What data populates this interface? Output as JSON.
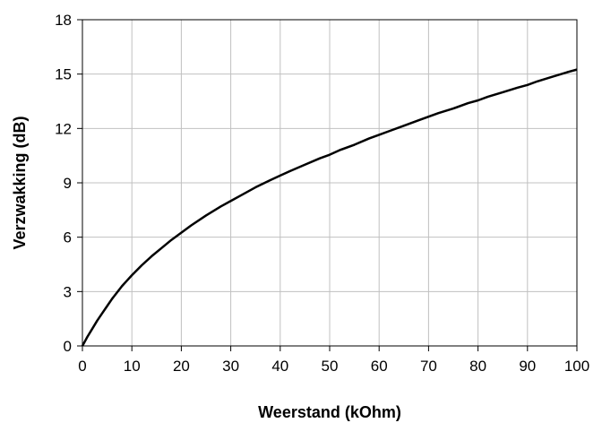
{
  "chart_data": {
    "type": "line",
    "title": "",
    "xlabel": "Weerstand (kOhm)",
    "ylabel": "Verzwakking (dB)",
    "xlim": [
      0,
      100
    ],
    "ylim": [
      0,
      18
    ],
    "x_ticks": [
      "0",
      "10",
      "20",
      "30",
      "40",
      "50",
      "60",
      "70",
      "80",
      "90",
      "100"
    ],
    "y_ticks": [
      "0",
      "3",
      "6",
      "9",
      "12",
      "15",
      "18"
    ],
    "grid": "on",
    "legend": "none",
    "line_color": "#000000",
    "grid_color": "#c0c0c0",
    "series": [
      {
        "x": [
          0,
          1,
          2,
          3,
          4,
          5,
          6,
          7,
          8,
          9,
          10,
          12,
          14,
          16,
          18,
          20,
          22,
          25,
          28,
          30,
          32,
          35,
          38,
          40,
          42,
          45,
          48,
          50,
          52,
          55,
          58,
          60,
          62,
          65,
          68,
          70,
          72,
          75,
          78,
          80,
          82,
          85,
          88,
          90,
          92,
          95,
          98,
          100
        ],
        "y": [
          0,
          0.5,
          0.95,
          1.4,
          1.8,
          2.2,
          2.6,
          2.95,
          3.3,
          3.6,
          3.9,
          4.45,
          4.95,
          5.4,
          5.85,
          6.25,
          6.65,
          7.2,
          7.7,
          8.0,
          8.3,
          8.75,
          9.15,
          9.4,
          9.65,
          10.0,
          10.35,
          10.55,
          10.8,
          11.1,
          11.45,
          11.65,
          11.85,
          12.15,
          12.45,
          12.65,
          12.85,
          13.1,
          13.4,
          13.55,
          13.75,
          14.0,
          14.25,
          14.4,
          14.6,
          14.85,
          15.1,
          15.25
        ]
      }
    ]
  }
}
